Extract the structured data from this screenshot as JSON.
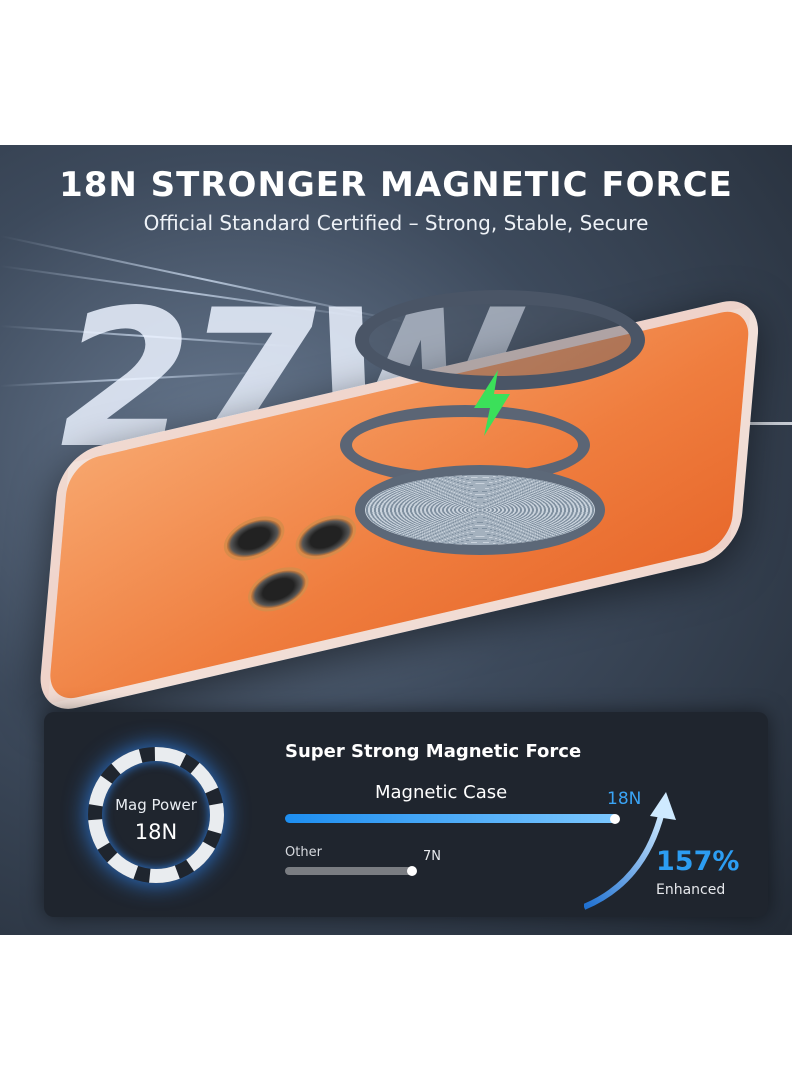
{
  "headline": {
    "title": "18N STRONGER MAGNETIC FORCE",
    "subtitle": "Official Standard Certified – Strong, Stable, Secure"
  },
  "hero": {
    "wattage": "27W",
    "bolt_color": "#3be05a",
    "case_color": "#ef7d3e"
  },
  "panel": {
    "dial": {
      "label": "Mag Power",
      "value": "18N"
    },
    "heading": "Super Strong Magnetic Force",
    "bars": [
      {
        "label": "Magnetic Case",
        "value_label": "18N",
        "value": 18,
        "color": "#1d8ef0"
      },
      {
        "label": "Other",
        "value_label": "7N",
        "value": 7,
        "color": "#7a7d82"
      }
    ],
    "improvement": {
      "value": "157%",
      "label": "Enhanced",
      "color": "#2c9df2"
    }
  }
}
